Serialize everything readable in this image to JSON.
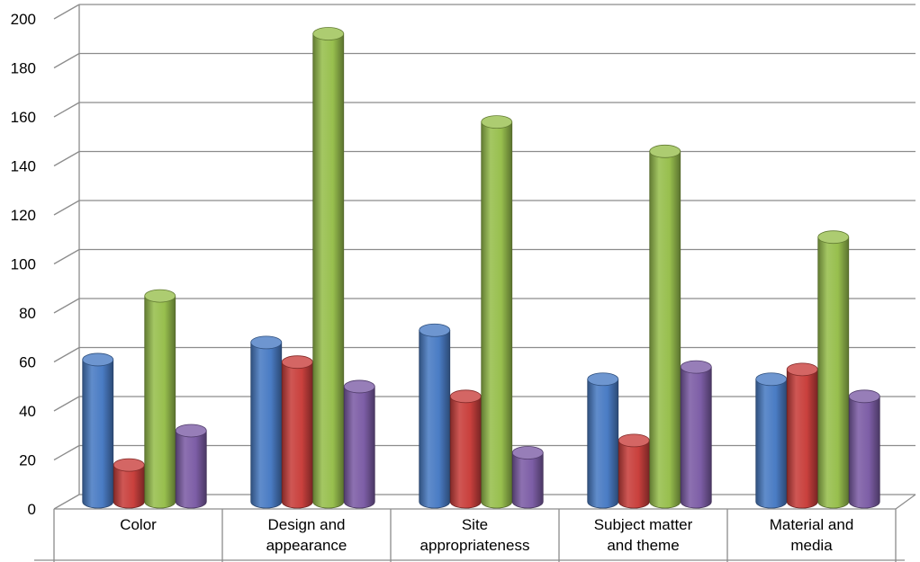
{
  "chart_data": {
    "type": "bar",
    "title": "",
    "xlabel": "",
    "ylabel": "",
    "ylim": [
      0,
      200
    ],
    "yticks": [
      0,
      20,
      40,
      60,
      80,
      100,
      120,
      140,
      160,
      180,
      200
    ],
    "grid": true,
    "style": "3d-cylinder",
    "categories": [
      [
        "Color"
      ],
      [
        "Design and",
        "appearance"
      ],
      [
        "Site",
        "appropriateness"
      ],
      [
        "Subject matter",
        "and theme"
      ],
      [
        "Material and",
        "media"
      ]
    ],
    "series": [
      {
        "color": "#4a7cc4",
        "values": [
          58,
          65,
          70,
          50,
          50
        ]
      },
      {
        "color": "#c9403d",
        "values": [
          15,
          57,
          43,
          25,
          54
        ]
      },
      {
        "color": "#98bf4e",
        "values": [
          84,
          191,
          155,
          143,
          108
        ]
      },
      {
        "color": "#7d5ea6",
        "values": [
          29,
          47,
          20,
          55,
          43
        ]
      }
    ]
  }
}
